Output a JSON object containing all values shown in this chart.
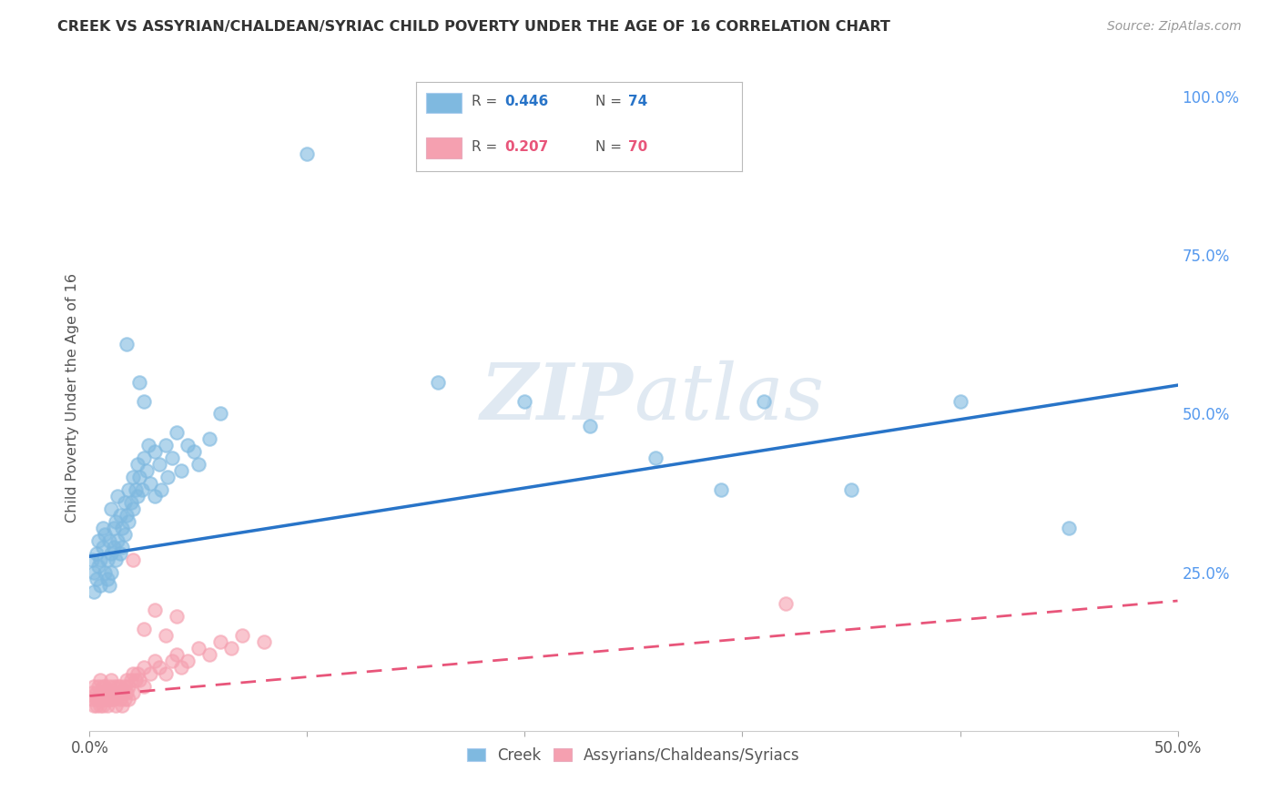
{
  "title": "CREEK VS ASSYRIAN/CHALDEAN/SYRIAC CHILD POVERTY UNDER THE AGE OF 16 CORRELATION CHART",
  "source": "Source: ZipAtlas.com",
  "ylabel": "Child Poverty Under the Age of 16",
  "xlim": [
    0.0,
    0.5
  ],
  "ylim": [
    0.0,
    1.05
  ],
  "yticks_right": [
    0.0,
    0.25,
    0.5,
    0.75,
    1.0
  ],
  "yticklabels_right": [
    "",
    "25.0%",
    "50.0%",
    "75.0%",
    "100.0%"
  ],
  "creek_R": 0.446,
  "creek_N": 74,
  "assyrian_R": 0.207,
  "assyrian_N": 70,
  "creek_color": "#7fb9e0",
  "assyrian_color": "#f5a0b0",
  "trendline_creek_color": "#2874c8",
  "trendline_assyrian_color": "#e8557a",
  "background_color": "#ffffff",
  "grid_color": "#d8d8d8",
  "watermark": "ZIPatlas",
  "creek_points": [
    [
      0.001,
      0.27
    ],
    [
      0.002,
      0.25
    ],
    [
      0.002,
      0.22
    ],
    [
      0.003,
      0.28
    ],
    [
      0.003,
      0.24
    ],
    [
      0.004,
      0.26
    ],
    [
      0.004,
      0.3
    ],
    [
      0.005,
      0.23
    ],
    [
      0.005,
      0.27
    ],
    [
      0.006,
      0.32
    ],
    [
      0.006,
      0.29
    ],
    [
      0.007,
      0.25
    ],
    [
      0.007,
      0.31
    ],
    [
      0.008,
      0.27
    ],
    [
      0.008,
      0.24
    ],
    [
      0.009,
      0.3
    ],
    [
      0.009,
      0.23
    ],
    [
      0.01,
      0.28
    ],
    [
      0.01,
      0.35
    ],
    [
      0.01,
      0.25
    ],
    [
      0.011,
      0.32
    ],
    [
      0.011,
      0.29
    ],
    [
      0.012,
      0.27
    ],
    [
      0.012,
      0.33
    ],
    [
      0.013,
      0.3
    ],
    [
      0.013,
      0.37
    ],
    [
      0.014,
      0.28
    ],
    [
      0.014,
      0.34
    ],
    [
      0.015,
      0.32
    ],
    [
      0.015,
      0.29
    ],
    [
      0.016,
      0.36
    ],
    [
      0.016,
      0.31
    ],
    [
      0.017,
      0.34
    ],
    [
      0.017,
      0.61
    ],
    [
      0.018,
      0.38
    ],
    [
      0.018,
      0.33
    ],
    [
      0.019,
      0.36
    ],
    [
      0.02,
      0.4
    ],
    [
      0.02,
      0.35
    ],
    [
      0.021,
      0.38
    ],
    [
      0.022,
      0.42
    ],
    [
      0.022,
      0.37
    ],
    [
      0.023,
      0.55
    ],
    [
      0.023,
      0.4
    ],
    [
      0.024,
      0.38
    ],
    [
      0.025,
      0.43
    ],
    [
      0.025,
      0.52
    ],
    [
      0.026,
      0.41
    ],
    [
      0.027,
      0.45
    ],
    [
      0.028,
      0.39
    ],
    [
      0.03,
      0.44
    ],
    [
      0.03,
      0.37
    ],
    [
      0.032,
      0.42
    ],
    [
      0.033,
      0.38
    ],
    [
      0.035,
      0.45
    ],
    [
      0.036,
      0.4
    ],
    [
      0.038,
      0.43
    ],
    [
      0.04,
      0.47
    ],
    [
      0.042,
      0.41
    ],
    [
      0.045,
      0.45
    ],
    [
      0.048,
      0.44
    ],
    [
      0.05,
      0.42
    ],
    [
      0.055,
      0.46
    ],
    [
      0.06,
      0.5
    ],
    [
      0.1,
      0.91
    ],
    [
      0.16,
      0.55
    ],
    [
      0.2,
      0.52
    ],
    [
      0.23,
      0.48
    ],
    [
      0.26,
      0.43
    ],
    [
      0.29,
      0.38
    ],
    [
      0.31,
      0.52
    ],
    [
      0.35,
      0.38
    ],
    [
      0.4,
      0.52
    ],
    [
      0.45,
      0.32
    ]
  ],
  "assyrian_points": [
    [
      0.001,
      0.05
    ],
    [
      0.001,
      0.06
    ],
    [
      0.002,
      0.04
    ],
    [
      0.002,
      0.07
    ],
    [
      0.003,
      0.05
    ],
    [
      0.003,
      0.06
    ],
    [
      0.003,
      0.04
    ],
    [
      0.004,
      0.07
    ],
    [
      0.004,
      0.05
    ],
    [
      0.005,
      0.06
    ],
    [
      0.005,
      0.04
    ],
    [
      0.005,
      0.08
    ],
    [
      0.006,
      0.05
    ],
    [
      0.006,
      0.07
    ],
    [
      0.006,
      0.04
    ],
    [
      0.007,
      0.06
    ],
    [
      0.007,
      0.05
    ],
    [
      0.007,
      0.07
    ],
    [
      0.008,
      0.05
    ],
    [
      0.008,
      0.06
    ],
    [
      0.008,
      0.04
    ],
    [
      0.009,
      0.07
    ],
    [
      0.009,
      0.05
    ],
    [
      0.01,
      0.06
    ],
    [
      0.01,
      0.08
    ],
    [
      0.01,
      0.05
    ],
    [
      0.011,
      0.07
    ],
    [
      0.011,
      0.05
    ],
    [
      0.012,
      0.06
    ],
    [
      0.012,
      0.04
    ],
    [
      0.013,
      0.07
    ],
    [
      0.013,
      0.06
    ],
    [
      0.014,
      0.05
    ],
    [
      0.014,
      0.07
    ],
    [
      0.015,
      0.06
    ],
    [
      0.015,
      0.04
    ],
    [
      0.016,
      0.07
    ],
    [
      0.016,
      0.05
    ],
    [
      0.017,
      0.08
    ],
    [
      0.017,
      0.06
    ],
    [
      0.018,
      0.07
    ],
    [
      0.018,
      0.05
    ],
    [
      0.019,
      0.08
    ],
    [
      0.02,
      0.09
    ],
    [
      0.02,
      0.06
    ],
    [
      0.021,
      0.08
    ],
    [
      0.022,
      0.09
    ],
    [
      0.023,
      0.08
    ],
    [
      0.025,
      0.1
    ],
    [
      0.025,
      0.07
    ],
    [
      0.028,
      0.09
    ],
    [
      0.03,
      0.11
    ],
    [
      0.032,
      0.1
    ],
    [
      0.035,
      0.09
    ],
    [
      0.038,
      0.11
    ],
    [
      0.04,
      0.12
    ],
    [
      0.042,
      0.1
    ],
    [
      0.045,
      0.11
    ],
    [
      0.05,
      0.13
    ],
    [
      0.055,
      0.12
    ],
    [
      0.06,
      0.14
    ],
    [
      0.065,
      0.13
    ],
    [
      0.07,
      0.15
    ],
    [
      0.08,
      0.14
    ],
    [
      0.02,
      0.27
    ],
    [
      0.025,
      0.16
    ],
    [
      0.03,
      0.19
    ],
    [
      0.035,
      0.15
    ],
    [
      0.04,
      0.18
    ],
    [
      0.32,
      0.2
    ]
  ],
  "creek_trend_x": [
    0.0,
    0.5
  ],
  "creek_trend_y": [
    0.275,
    0.545
  ],
  "assyrian_trend_x": [
    0.0,
    0.5
  ],
  "assyrian_trend_y": [
    0.055,
    0.205
  ]
}
